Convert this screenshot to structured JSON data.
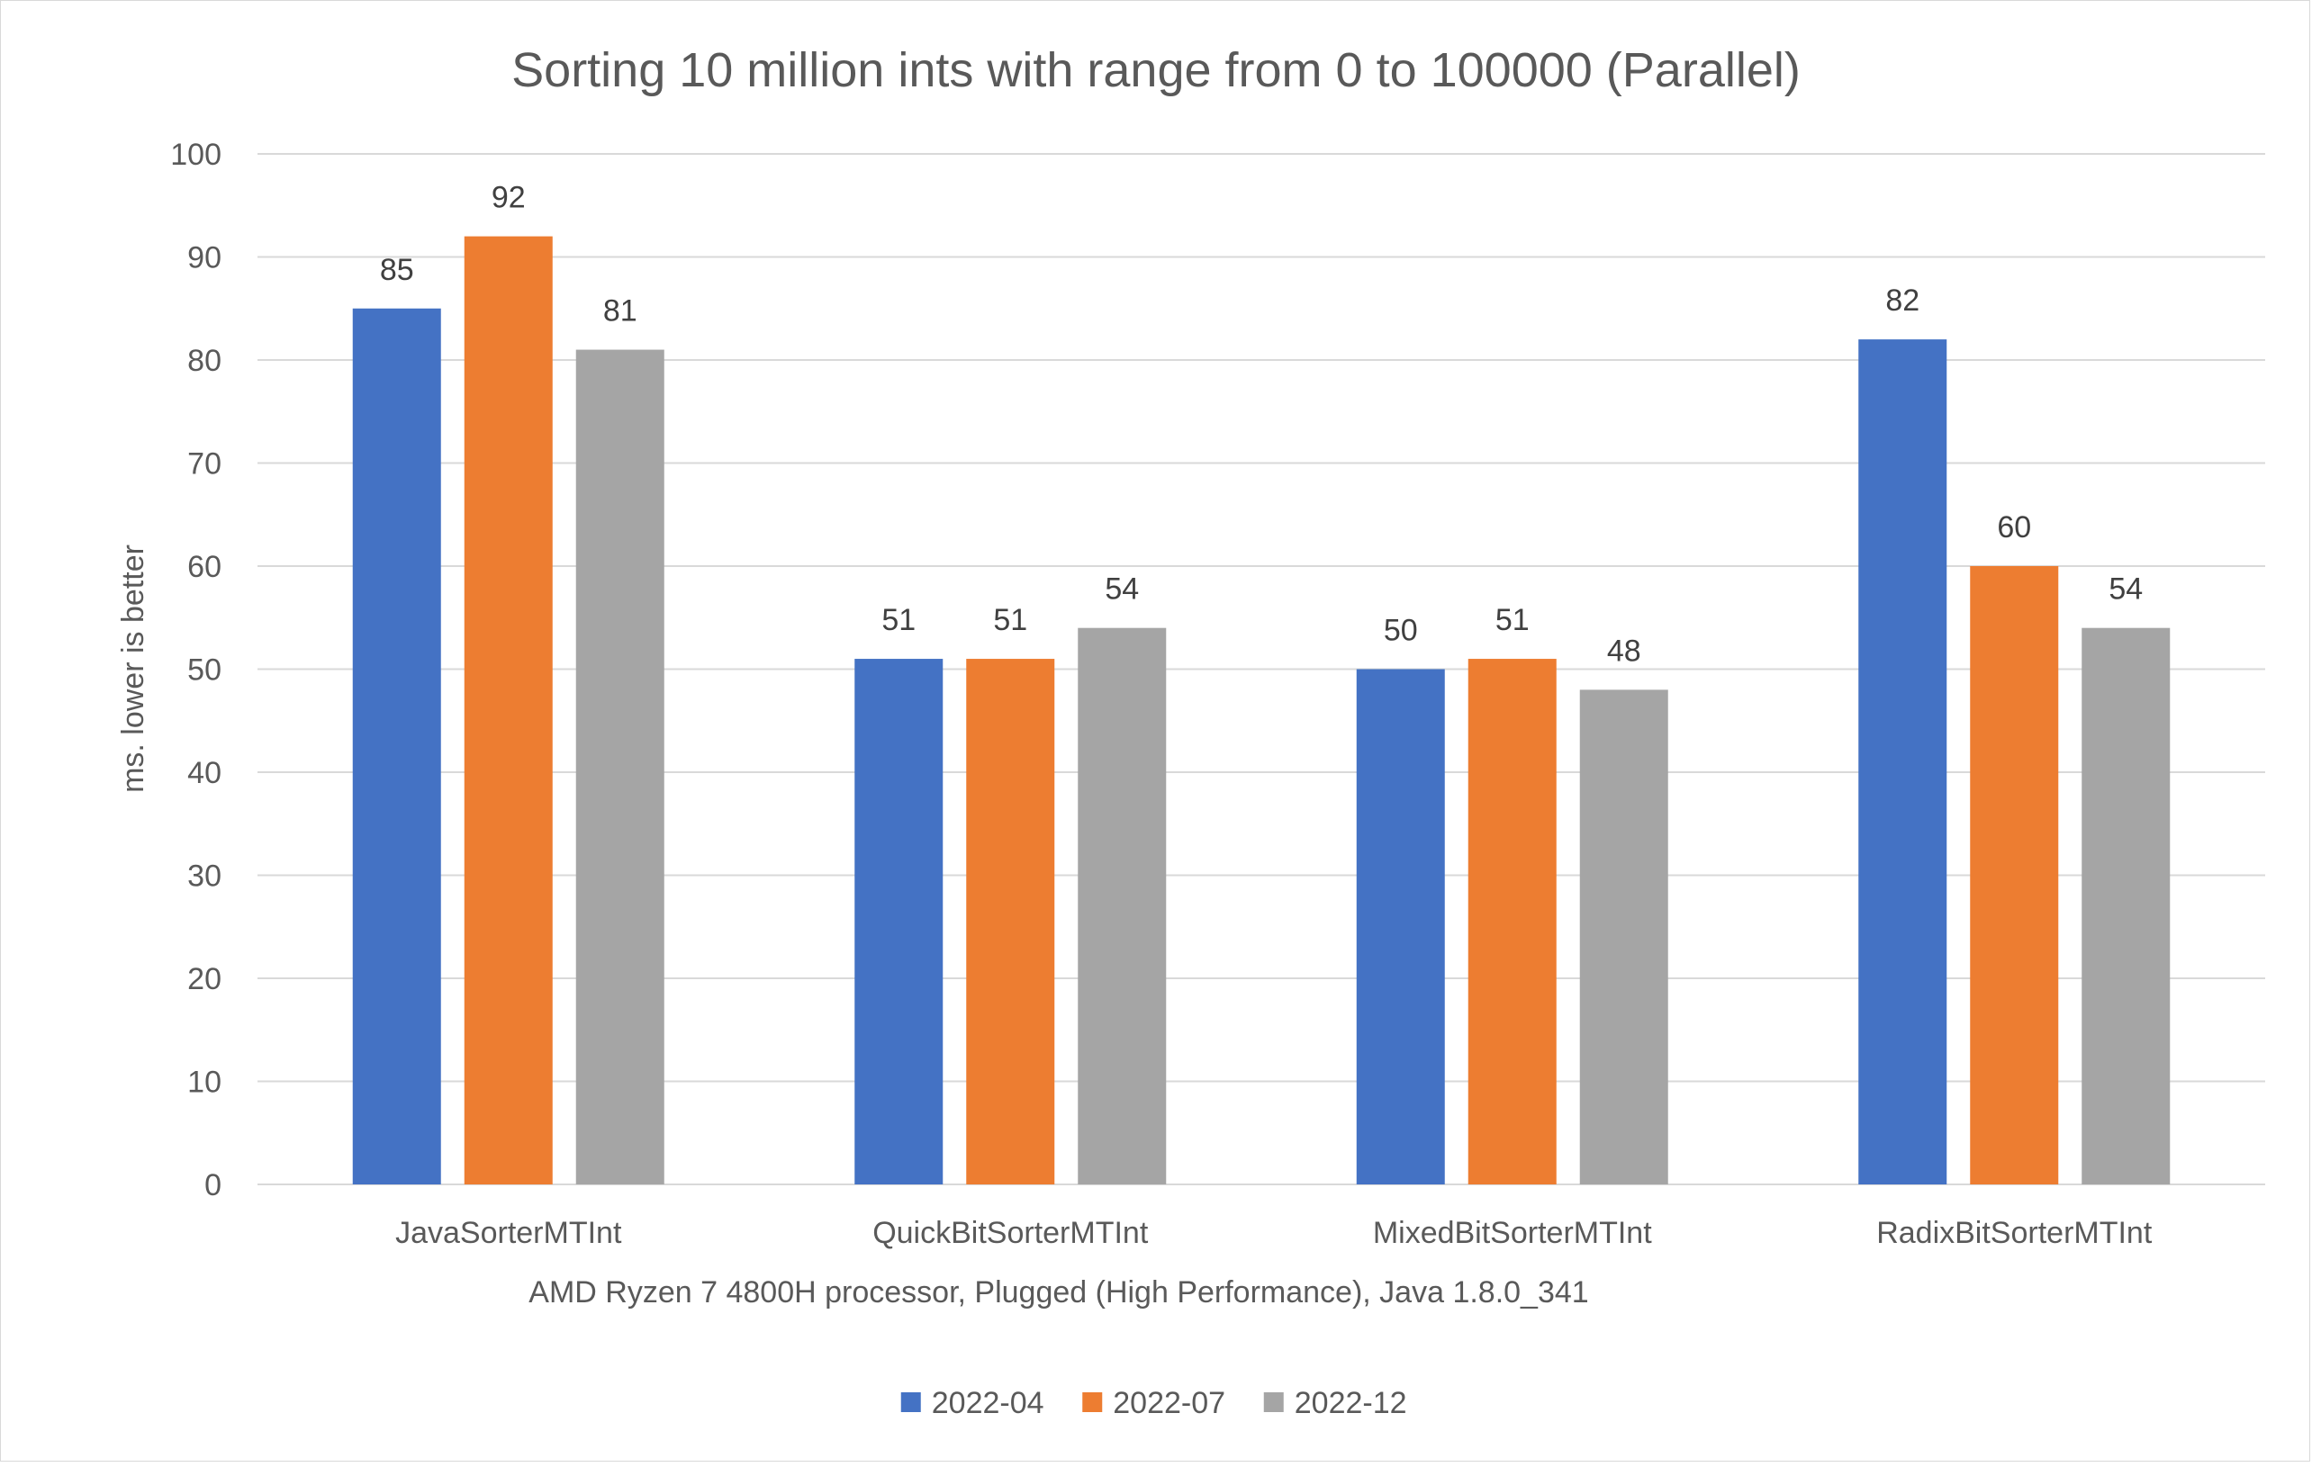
{
  "chart_data": {
    "type": "bar",
    "title": "Sorting 10 million ints with range from 0 to 100000 (Parallel)",
    "xlabel": "AMD Ryzen 7 4800H processor, Plugged (High Performance), Java 1.8.0_341",
    "ylabel": "ms. lower is better",
    "ylim": [
      0,
      100
    ],
    "yticks": [
      "0",
      "10",
      "20",
      "30",
      "40",
      "50",
      "60",
      "70",
      "80",
      "90",
      "100"
    ],
    "grid": true,
    "legend_position": "bottom",
    "categories": [
      "JavaSorterMTInt",
      "QuickBitSorterMTInt",
      "MixedBitSorterMTInt",
      "RadixBitSorterMTInt"
    ],
    "series": [
      {
        "name": "2022-04",
        "color": "#4472C4",
        "values": [
          85,
          51,
          50,
          82
        ]
      },
      {
        "name": "2022-07",
        "color": "#ED7D31",
        "values": [
          92,
          51,
          51,
          60
        ]
      },
      {
        "name": "2022-12",
        "color": "#A5A5A5",
        "values": [
          81,
          54,
          48,
          54
        ]
      }
    ]
  }
}
